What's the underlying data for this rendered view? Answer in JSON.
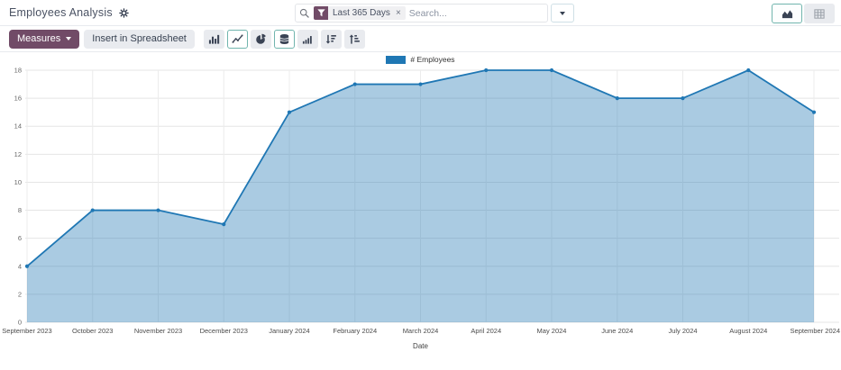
{
  "header": {
    "title": "Employees Analysis",
    "search": {
      "facet_label": "Last 365 Days",
      "facet_remove_glyph": "×",
      "placeholder": "Search..."
    },
    "view_switcher": [
      {
        "name": "view-switcher-graph",
        "active": true
      },
      {
        "name": "view-switcher-pivot",
        "active": false
      }
    ]
  },
  "toolbar": {
    "measures_label": "Measures",
    "insert_spreadsheet_label": "Insert in Spreadsheet",
    "chart_buttons": [
      {
        "name": "bar-chart-button",
        "active": false
      },
      {
        "name": "line-chart-button",
        "active": true
      },
      {
        "name": "pie-chart-button",
        "active": false
      },
      {
        "name": "stacked-button",
        "active": true
      },
      {
        "name": "cumulative-button",
        "active": false
      },
      {
        "name": "sort-descending-button",
        "active": false
      },
      {
        "name": "sort-ascending-button",
        "active": false
      }
    ]
  },
  "chart_data": {
    "type": "area",
    "series_name": "# Employees",
    "categories": [
      "September 2023",
      "October 2023",
      "November 2023",
      "December 2023",
      "January 2024",
      "February 2024",
      "March 2024",
      "April 2024",
      "May 2024",
      "June 2024",
      "July 2024",
      "August 2024",
      "September 2024"
    ],
    "values": [
      4,
      8,
      8,
      7,
      15,
      17,
      17,
      18,
      18,
      16,
      16,
      18,
      15
    ],
    "xlabel": "Date",
    "ylabel": "",
    "ylim": [
      0,
      18
    ],
    "ytick_step": 2,
    "grid": true,
    "legend_position": "top",
    "colors": {
      "line": "#1f77b4",
      "fill": "rgba(31,119,180,0.38)"
    }
  },
  "colors": {
    "brand": "#714B67",
    "accent_teal": "#71b5ae",
    "series_blue": "#1f77b4"
  }
}
